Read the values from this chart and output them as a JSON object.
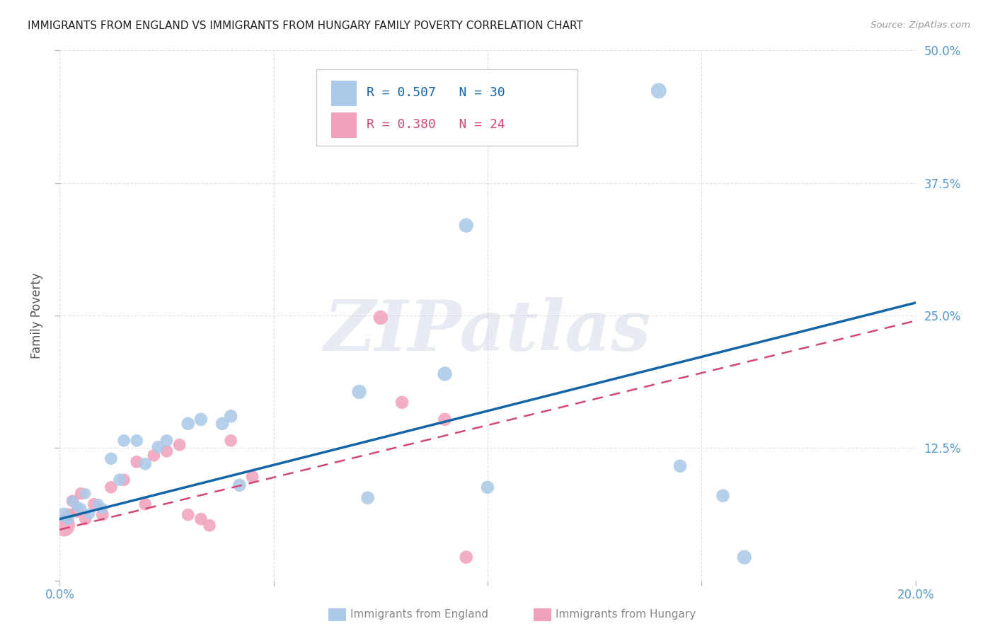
{
  "title": "IMMIGRANTS FROM ENGLAND VS IMMIGRANTS FROM HUNGARY FAMILY POVERTY CORRELATION CHART",
  "source": "Source: ZipAtlas.com",
  "ylabel_label": "Family Poverty",
  "x_label_england": "Immigrants from England",
  "x_label_hungary": "Immigrants from Hungary",
  "xlim": [
    0.0,
    0.2
  ],
  "ylim": [
    0.0,
    0.5
  ],
  "xticks": [
    0.0,
    0.05,
    0.1,
    0.15,
    0.2
  ],
  "yticks": [
    0.0,
    0.125,
    0.25,
    0.375,
    0.5
  ],
  "england_R": "0.507",
  "england_N": "30",
  "hungary_R": "0.380",
  "hungary_N": "24",
  "england_dot_color": "#aac8e8",
  "england_line_color": "#1464a8",
  "hungary_dot_color": "#f0a0b8",
  "hungary_line_color": "#d04878",
  "england_x": [
    0.001,
    0.002,
    0.003,
    0.004,
    0.005,
    0.006,
    0.007,
    0.009,
    0.01,
    0.012,
    0.014,
    0.015,
    0.018,
    0.02,
    0.023,
    0.025,
    0.03,
    0.033,
    0.038,
    0.04,
    0.042,
    0.07,
    0.072,
    0.09,
    0.095,
    0.1,
    0.14,
    0.145,
    0.155,
    0.16
  ],
  "england_y": [
    0.062,
    0.058,
    0.075,
    0.07,
    0.068,
    0.082,
    0.063,
    0.072,
    0.068,
    0.115,
    0.095,
    0.132,
    0.132,
    0.11,
    0.126,
    0.132,
    0.148,
    0.152,
    0.148,
    0.155,
    0.09,
    0.178,
    0.078,
    0.195,
    0.335,
    0.088,
    0.462,
    0.108,
    0.08,
    0.022
  ],
  "england_sizes": [
    12,
    8,
    7,
    7,
    7,
    7,
    7,
    7,
    7,
    9,
    9,
    9,
    9,
    9,
    9,
    9,
    10,
    10,
    10,
    10,
    10,
    12,
    10,
    12,
    12,
    10,
    14,
    10,
    10,
    12
  ],
  "hungary_x": [
    0.001,
    0.002,
    0.003,
    0.004,
    0.005,
    0.006,
    0.008,
    0.01,
    0.012,
    0.015,
    0.018,
    0.02,
    0.022,
    0.025,
    0.028,
    0.03,
    0.033,
    0.035,
    0.04,
    0.045,
    0.075,
    0.08,
    0.09,
    0.095
  ],
  "hungary_y": [
    0.052,
    0.062,
    0.075,
    0.065,
    0.082,
    0.058,
    0.072,
    0.062,
    0.088,
    0.095,
    0.112,
    0.072,
    0.118,
    0.122,
    0.128,
    0.062,
    0.058,
    0.052,
    0.132,
    0.098,
    0.248,
    0.168,
    0.152,
    0.022
  ],
  "hungary_sizes": [
    28,
    10,
    9,
    9,
    9,
    9,
    9,
    9,
    9,
    9,
    9,
    9,
    9,
    9,
    9,
    9,
    9,
    9,
    9,
    9,
    12,
    10,
    10,
    10
  ],
  "england_trend_x": [
    0.0,
    0.2
  ],
  "england_trend_y": [
    0.058,
    0.262
  ],
  "hungary_trend_x": [
    0.0,
    0.2
  ],
  "hungary_trend_y": [
    0.048,
    0.245
  ],
  "watermark_text": "ZIPatlas",
  "bg_color": "#ffffff",
  "grid_color": "#dddddd",
  "tick_color": "#5599cc"
}
